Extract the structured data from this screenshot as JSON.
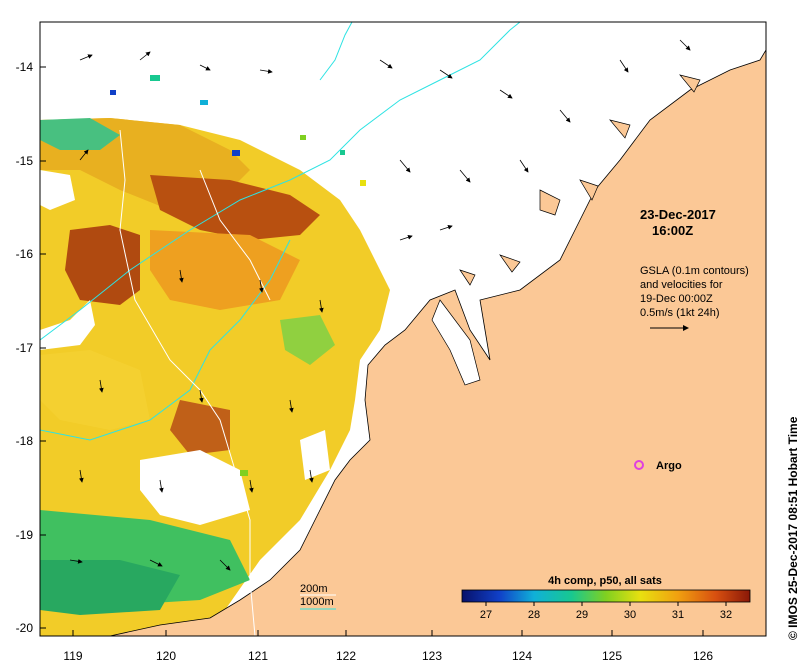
{
  "map": {
    "lat_labels": [
      "-14",
      "-15",
      "-16",
      "-17",
      "-18",
      "-19",
      "-20"
    ],
    "lon_labels": [
      "119",
      "120",
      "121",
      "122",
      "123",
      "124",
      "125",
      "126"
    ],
    "date": "23-Dec-2017",
    "time": "16:00Z",
    "legend_lines": [
      "GSLA (0.1m contours)",
      "and velocities for",
      "19-Dec 00:00Z",
      "0.5m/s (1kt 24h)"
    ],
    "argo_label": "Argo",
    "isobath_200": "200m",
    "isobath_1000": "1000m",
    "colorbar_title": "4h comp, p50, all sats",
    "colorbar_ticks": [
      "27",
      "28",
      "29",
      "30",
      "31",
      "32"
    ],
    "colorbar_range": [
      26.5,
      32.5
    ],
    "credit": "© IMOS 25-Dec-2017 08:51 Hobart Time",
    "colors": {
      "land": "#fbc896",
      "isobath_1000": "#2de3e3",
      "isobath_200": "#ffffff",
      "argo": "#e040e0"
    }
  }
}
